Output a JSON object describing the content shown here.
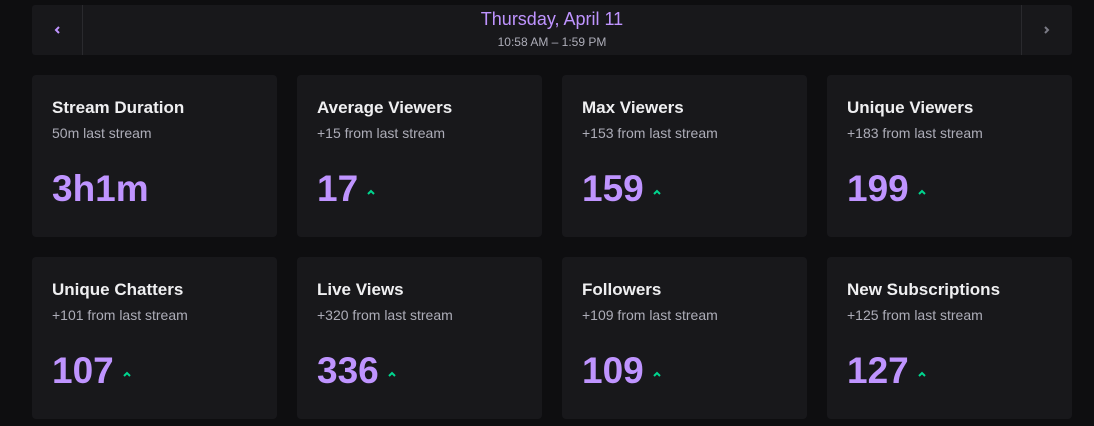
{
  "header": {
    "date": "Thursday, April 11",
    "time": "10:58 AM – 1:59 PM"
  },
  "cards": [
    {
      "title": "Stream Duration",
      "subtitle": "50m last stream",
      "value": "3h1m"
    },
    {
      "title": "Average Viewers",
      "subtitle": "+15 from last stream",
      "value": 17
    },
    {
      "title": "Max Viewers",
      "subtitle": "+153 from last stream",
      "value": 159
    },
    {
      "title": "Unique Viewers",
      "subtitle": "+183 from last stream",
      "value": 199
    },
    {
      "title": "Unique Chatters",
      "subtitle": "+101 from last stream",
      "value": 107
    },
    {
      "title": "Live Views",
      "subtitle": "+320 from last stream",
      "value": 336
    },
    {
      "title": "Followers",
      "subtitle": "+109 from last stream",
      "value": 109
    },
    {
      "title": "New Subscriptions",
      "subtitle": "+125 from last stream",
      "value": 127
    }
  ]
}
